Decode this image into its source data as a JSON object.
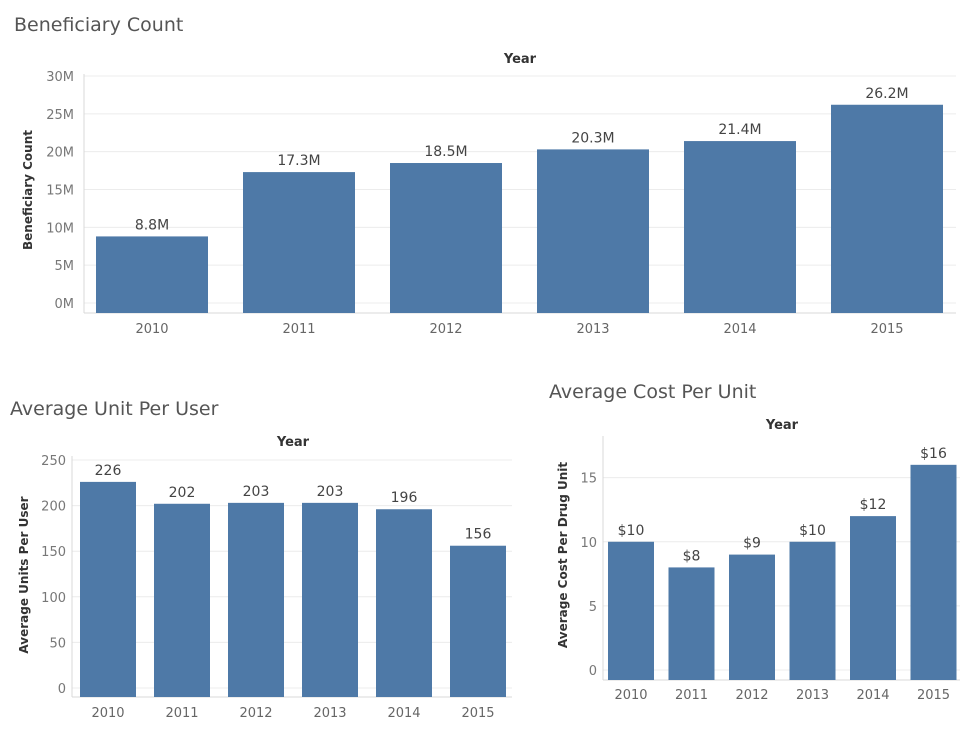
{
  "chart_data": [
    {
      "type": "bar",
      "title": "Beneficiary Count",
      "header": "Year",
      "ylabel": "Beneficiary Count",
      "categories": [
        "2010",
        "2011",
        "2012",
        "2013",
        "2014",
        "2015"
      ],
      "values": [
        8.8,
        17.3,
        18.5,
        20.3,
        21.4,
        26.2
      ],
      "data_labels": [
        "8.8M",
        "17.3M",
        "18.5M",
        "20.3M",
        "21.4M",
        "26.2M"
      ],
      "yticks": [
        0,
        5,
        10,
        15,
        20,
        25,
        30
      ],
      "ytick_labels": [
        "0M",
        "5M",
        "10M",
        "15M",
        "20M",
        "25M",
        "30M"
      ],
      "ylim": [
        0,
        30
      ],
      "units": "millions"
    },
    {
      "type": "bar",
      "title": "Average Unit Per User",
      "header": "Year",
      "ylabel": "Average Units Per User",
      "categories": [
        "2010",
        "2011",
        "2012",
        "2013",
        "2014",
        "2015"
      ],
      "values": [
        226,
        202,
        203,
        203,
        196,
        156
      ],
      "data_labels": [
        "226",
        "202",
        "203",
        "203",
        "196",
        "156"
      ],
      "yticks": [
        0,
        50,
        100,
        150,
        200,
        250
      ],
      "ytick_labels": [
        "0",
        "50",
        "100",
        "150",
        "200",
        "250"
      ],
      "ylim": [
        0,
        250
      ]
    },
    {
      "type": "bar",
      "title": "Average Cost Per Unit",
      "header": "Year",
      "ylabel": "Average Cost Per Drug Unit",
      "categories": [
        "2010",
        "2011",
        "2012",
        "2013",
        "2014",
        "2015"
      ],
      "values": [
        10,
        8,
        9,
        10,
        12,
        16
      ],
      "data_labels": [
        "$10",
        "$8",
        "$9",
        "$10",
        "$12",
        "$16"
      ],
      "yticks": [
        0,
        5,
        10,
        15
      ],
      "ytick_labels": [
        "0",
        "5",
        "10",
        "15"
      ],
      "ylim": [
        0,
        17
      ]
    }
  ]
}
